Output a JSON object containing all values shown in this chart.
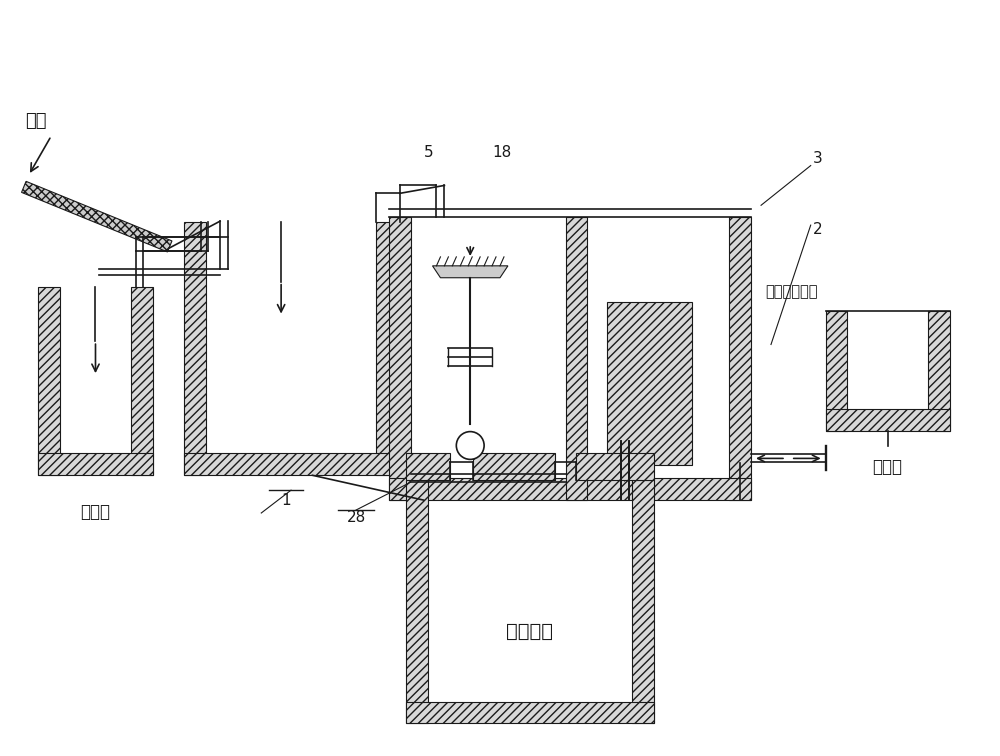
{
  "bg_color": "#ffffff",
  "line_color": "#1a1a1a",
  "labels": {
    "wastewater": "废水",
    "raw_pool": "原水池",
    "sludge_pool": "污泥池",
    "treatment_pool": "处理水池",
    "sludge_flow": "污泥流动方向",
    "num1": "1",
    "num2": "2",
    "num3": "3",
    "num5": "5",
    "num18": "18",
    "num28": "28"
  },
  "figsize": [
    10.0,
    7.56
  ],
  "dpi": 100
}
